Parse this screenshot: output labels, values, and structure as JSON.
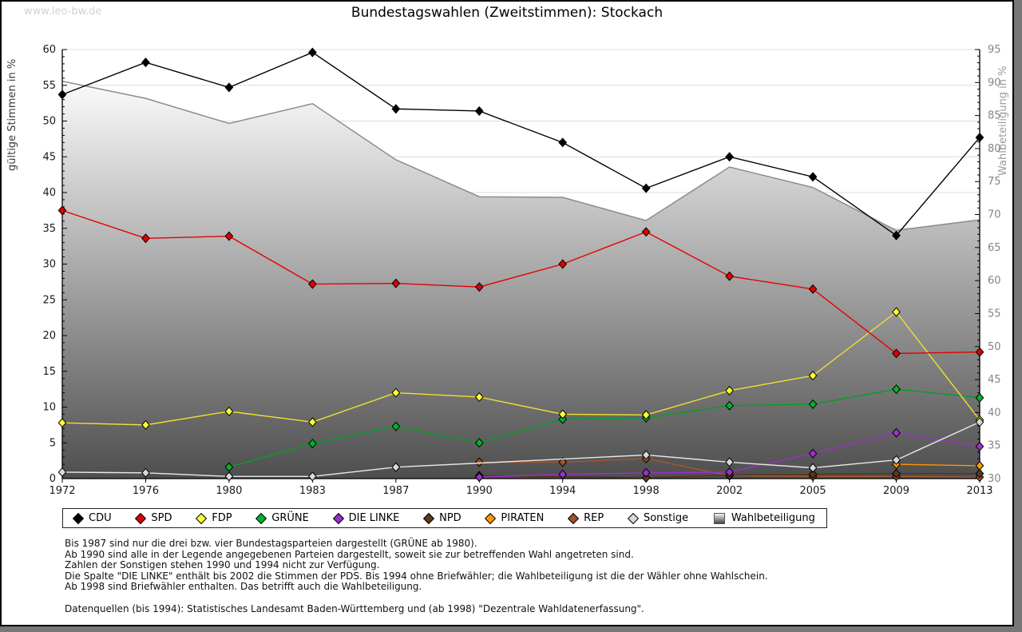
{
  "page": {
    "watermark": "www.leo-bw.de",
    "title": "Bundestagswahlen (Zweitstimmen): Stockach"
  },
  "chart_data": {
    "type": "line",
    "title": "Bundestagswahlen (Zweitstimmen): Stockach",
    "x_tick_labels": [
      "1972",
      "1976",
      "1980",
      "1983",
      "1987",
      "1990",
      "1994",
      "1998",
      "2002",
      "2005",
      "2009",
      "2013"
    ],
    "y_left": {
      "label": "gültige Stimmen in %",
      "min": 0,
      "max": 60,
      "tick_step": 5,
      "minor_step": 1
    },
    "y_right": {
      "label": "Wahlbeteiligung in %",
      "min": 30,
      "max": 95,
      "tick_step": 5,
      "minor_step": 1
    },
    "grid": true,
    "legend_position": "bottom",
    "series": [
      {
        "name": "CDU",
        "axis": "left",
        "marker": "diamond",
        "line": "#000000",
        "fill": "#000000",
        "values": [
          53.7,
          58.2,
          54.7,
          59.6,
          51.7,
          51.4,
          47.0,
          40.6,
          45.0,
          42.2,
          34.0,
          47.7
        ]
      },
      {
        "name": "SPD",
        "axis": "left",
        "marker": "diamond",
        "line": "#e60000",
        "fill": "#dd0000",
        "values": [
          37.5,
          33.6,
          33.9,
          27.2,
          27.3,
          26.8,
          30.0,
          34.5,
          28.3,
          26.5,
          17.5,
          17.7
        ]
      },
      {
        "name": "FDP",
        "axis": "left",
        "marker": "diamond",
        "line": "#f0e130",
        "fill": "#ffff33",
        "values": [
          7.8,
          7.5,
          9.4,
          7.9,
          12.0,
          11.4,
          9.0,
          8.9,
          12.3,
          14.4,
          23.3,
          8.2
        ]
      },
      {
        "name": "GRÜNE",
        "axis": "left",
        "marker": "diamond",
        "line": "#00a124",
        "fill": "#00b32a",
        "values": [
          null,
          null,
          1.6,
          4.9,
          7.3,
          5.0,
          8.3,
          8.5,
          10.2,
          10.4,
          12.5,
          11.3
        ]
      },
      {
        "name": "DIE LINKE",
        "axis": "left",
        "marker": "diamond",
        "line": "#9b30d0",
        "fill": "#9932cc",
        "values": [
          null,
          null,
          null,
          null,
          null,
          0.2,
          0.6,
          0.8,
          0.9,
          3.5,
          6.4,
          4.5
        ]
      },
      {
        "name": "NPD",
        "axis": "left",
        "marker": "diamond",
        "line": "#55341a",
        "fill": "#5c3a1e",
        "values": [
          null,
          null,
          null,
          null,
          null,
          0.4,
          null,
          0.1,
          0.5,
          0.6,
          0.7,
          0.7
        ]
      },
      {
        "name": "PIRATEN",
        "axis": "left",
        "marker": "diamond",
        "line": "#ff9500",
        "fill": "#ff9900",
        "values": [
          null,
          null,
          null,
          null,
          null,
          null,
          null,
          null,
          null,
          null,
          2.0,
          1.8
        ]
      },
      {
        "name": "REP",
        "axis": "left",
        "marker": "diamond",
        "line": "#a8562a",
        "fill": "#a0522d",
        "values": [
          null,
          null,
          null,
          null,
          null,
          2.3,
          2.3,
          2.8,
          0.4,
          0.3,
          0.3,
          0.2
        ]
      },
      {
        "name": "Sonstige",
        "axis": "left",
        "marker": "diamond",
        "line": "#e8e8e8",
        "fill": "#d9d9d9",
        "values": [
          0.9,
          0.8,
          0.3,
          0.3,
          1.6,
          null,
          null,
          3.3,
          2.3,
          1.5,
          2.6,
          7.9
        ]
      },
      {
        "name": "Wahlbeteiligung",
        "axis": "right",
        "marker": "square",
        "line": "#8c8c8c",
        "fill": "gradient",
        "type": "area",
        "values": [
          90.2,
          87.6,
          83.8,
          86.8,
          78.3,
          72.7,
          72.6,
          69.1,
          77.2,
          74.1,
          67.6,
          69.2
        ]
      }
    ],
    "colors": {
      "grid": "#dcdcdc",
      "axis": "#000000",
      "left_tick_text": "#1a1a1a",
      "right_tick_text": "#848484",
      "area_top": "#fbfbfb",
      "area_bottom": "#4e4e4e"
    }
  },
  "footnotes": {
    "lines": [
      "Bis 1987 sind nur die drei bzw. vier Bundestagsparteien dargestellt (GRÜNE ab 1980).",
      "Ab 1990 sind alle in der Legende angegebenen Parteien dargestellt, soweit sie zur betreffenden Wahl angetreten sind.",
      "Zahlen der Sonstigen stehen 1990 und 1994 nicht zur Verfügung.",
      "Die Spalte \"DIE LINKE\" enthält bis 2002 die Stimmen der PDS. Bis 1994 ohne Briefwähler; die Wahlbeteiligung ist die der Wähler ohne Wahlschein.",
      "Ab 1998 sind Briefwähler enthalten. Das betrifft auch die Wahlbeteiligung."
    ],
    "source": "Datenquellen (bis 1994): Statistisches Landesamt Baden-Württemberg und (ab 1998) \"Dezentrale Wahldatenerfassung\"."
  }
}
